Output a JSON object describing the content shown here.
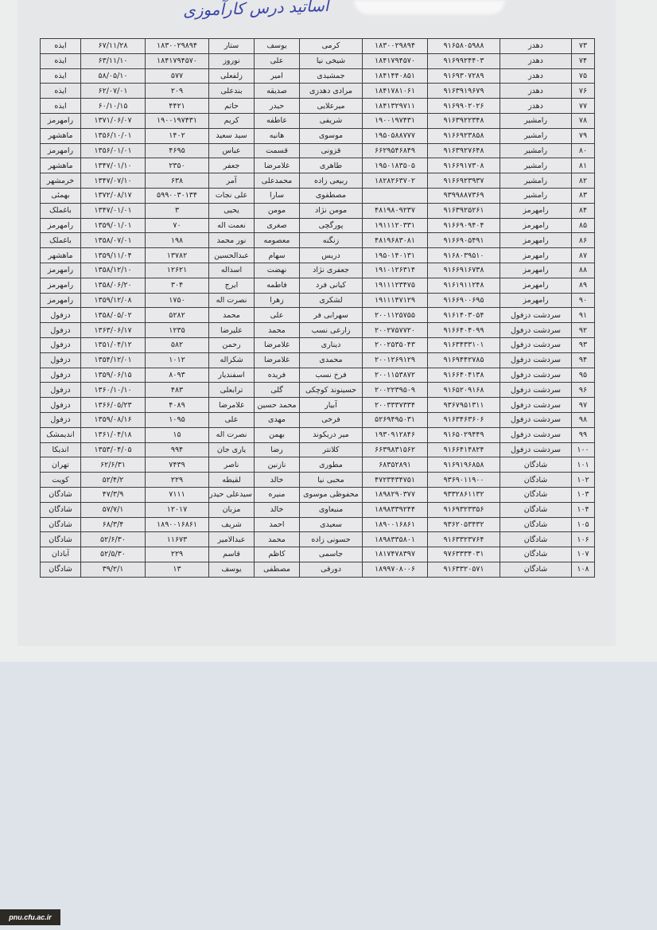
{
  "title": "اساتید درس کارآموزی",
  "watermark": "pnu.cfu.ac.ir",
  "rows": [
    [
      "۷۳",
      "دهدز",
      "۹۱۶۵۸۰۵۹۸۸",
      "۱۸۳۰۰۲۹۸۹۴",
      "کرمی",
      "یوسف",
      "ستار",
      "۱۸۳۰۰۲۹۸۹۴",
      "۶۷/۱۱/۲۸",
      "ایذه"
    ],
    [
      "۷۴",
      "دهدز",
      "۹۱۶۹۹۲۴۴۰۳",
      "۱۸۴۱۷۹۴۵۷۰",
      "شیخی نیا",
      "علی",
      "نوروز",
      "۱۸۴۱۷۹۴۵۷۰",
      "۶۳/۱۱/۱۰",
      "ایذه"
    ],
    [
      "۷۵",
      "دهدز",
      "۹۱۶۹۳۰۷۲۸۹",
      "۱۸۴۱۴۴۰۸۵۱",
      "جمشیدی",
      "امیر",
      "زلفعلی",
      "۵۷۷",
      "۵۸/۰۵/۱۰",
      "ایذه"
    ],
    [
      "۷۶",
      "دهدز",
      "۹۱۶۳۹۱۹۶۷۹",
      "۱۸۴۱۷۸۱۰۶۱",
      "مرادی دهدزی",
      "صدیقه",
      "بندعلی",
      "۲۰۹",
      "۶۲/۰۷/۰۱",
      "ایذه"
    ],
    [
      "۷۷",
      "دهدز",
      "۹۱۶۹۹۰۲۰۲۶",
      "۱۸۴۱۳۲۹۷۱۱",
      "میرعلایی",
      "حیدر",
      "حاتم",
      "۴۴۲۱",
      "۶۰/۱۰/۱۵",
      "ایذه"
    ],
    [
      "۷۸",
      "رامشیر",
      "۹۱۶۳۹۲۲۳۴۸",
      "۱۹۰۰۱۹۷۴۳۱",
      "شریفی",
      "عاطفه",
      "کریم",
      "۱۹۰۰۱۹۷۴۳۱",
      "۱۳۷۱/۰۶/۰۷",
      "رامهرمز"
    ],
    [
      "۷۹",
      "رامشیر",
      "۹۱۶۶۹۲۳۸۵۸",
      "۱۹۵۰۵۸۸۷۷۷",
      "موسوی",
      "هانیه",
      "سید سعید",
      "۱۴۰۲",
      "۱۳۵۶/۱۰/۰۱",
      "ماهشهر"
    ],
    [
      "۸۰",
      "رامشیر",
      "۹۱۶۳۹۲۷۶۴۸",
      "۶۶۲۹۵۴۶۸۴۹",
      "قزونی",
      "قسمت",
      "عباس",
      "۴۶۹۵",
      "۱۳۵۶/۰۱/۰۱",
      "رامهرمز"
    ],
    [
      "۸۱",
      "رامشیر",
      "۹۱۶۶۹۱۷۳۰۸",
      "۱۹۵۰۱۸۳۵۰۵",
      "طاهری",
      "غلامرضا",
      "جعفر",
      "۲۳۵۰",
      "۱۳۴۷/۰۱/۱۰",
      "ماهشهر"
    ],
    [
      "۸۲",
      "رامشیر",
      "۹۱۶۶۹۲۳۹۳۷",
      "۱۸۲۸۲۶۳۷۰۲",
      "ربیعی زاده",
      "محمدعلی",
      "آمر",
      "۶۳۸",
      "۱۳۴۷/۰۷/۱۰",
      "خرمشهر"
    ],
    [
      "۸۳",
      "رامشیر",
      "۹۳۹۹۸۸۷۳۶۹",
      "",
      "مصطفوی",
      "سارا",
      "علی نجات",
      "۵۹۹۰۰۳۰۱۳۴",
      "۱۳۷۲/۰۸/۱۷",
      "بهمئی"
    ],
    [
      "۸۴",
      "رامهرمز",
      "۹۱۶۳۹۲۵۲۶۱",
      "۴۸۱۹۸۰۹۲۳۷",
      "مومن نژاد",
      "مومن",
      "یحیی",
      "۳",
      "۱۳۴۷/۰۱/۰۱",
      "باغملک"
    ],
    [
      "۸۵",
      "رامهرمز",
      "۹۱۶۶۹۰۹۴۰۴",
      "۱۹۱۱۱۲۰۳۳۱",
      "پورگچی",
      "صغری",
      "نعمت اله",
      "۷۰",
      "۱۳۵۹/۰۱/۰۱",
      "رامهرمز"
    ],
    [
      "۸۶",
      "رامهرمز",
      "۹۱۶۶۹۰۵۴۹۱",
      "۴۸۱۹۶۸۳۰۸۱",
      "زنگنه",
      "معصومه",
      "نور محمد",
      "۱۹۸",
      "۱۳۵۸/۰۷/۰۱",
      "باغملک"
    ],
    [
      "۸۷",
      "رامهرمز",
      "۹۱۶۸۰۳۹۵۱۰",
      "۱۹۵۰۱۴۰۱۳۱",
      "دریس",
      "سهام",
      "عبدالحسین",
      "۱۳۷۸۲",
      "۱۳۵۹/۱۱/۰۴",
      "ماهشهر"
    ],
    [
      "۸۸",
      "رامهرمز",
      "۹۱۶۶۹۱۶۷۳۸",
      "۱۹۱۰۱۲۶۳۱۴",
      "جعفری نژاد",
      "نهضت",
      "اسداله",
      "۱۲۶۲۱",
      "۱۳۵۸/۱۲/۱۰",
      "رامهرمز"
    ],
    [
      "۸۹",
      "رامهرمز",
      "۹۱۶۱۹۱۱۲۴۸",
      "۱۹۱۱۱۲۳۴۷۵",
      "کیانی فرد",
      "فاطمه",
      "ایرج",
      "۳۰۴",
      "۱۳۵۸/۰۶/۲۰",
      "رامهرمز"
    ],
    [
      "۹۰",
      "رامهرمز",
      "۹۱۶۶۹۰۰۶۹۵",
      "۱۹۱۱۱۴۷۱۲۹",
      "لشکری",
      "زهرا",
      "نصرت اله",
      "۱۷۵۰",
      "۱۳۵۹/۱۲/۰۸",
      "رامهرمز"
    ],
    [
      "۹۱",
      "سردشت دزفول",
      "۹۱۶۱۴۰۳۰۵۴",
      "۲۰۰۱۱۲۵۷۵۵",
      "سهرابی فر",
      "علی",
      "محمد",
      "۵۲۸۲",
      "۱۳۵۸/۰۵/۰۲",
      "دزفول"
    ],
    [
      "۹۲",
      "سردشت دزفول",
      "۹۱۶۶۴۰۴۰۹۹",
      "۲۰۰۲۷۵۷۷۲۰",
      "زارعی نسب",
      "محمد",
      "علیرضا",
      "۱۲۳۵",
      "۱۳۶۳/۰۶/۱۷",
      "دزفول"
    ],
    [
      "۹۳",
      "سردشت دزفول",
      "۹۱۶۳۴۳۳۱۰۱",
      "۲۰۰۲۵۳۵۰۴۳",
      "دیناری",
      "غلامرضا",
      "رحمن",
      "۵۸۲",
      "۱۳۵۱/۰۴/۱۲",
      "دزفول"
    ],
    [
      "۹۴",
      "سردشت دزفول",
      "۹۱۶۹۴۴۲۷۸۵",
      "۲۰۰۱۲۶۹۱۲۹",
      "محمدی",
      "غلامرضا",
      "شکراله",
      "۱۰۱۲",
      "۱۳۵۴/۱۲/۰۱",
      "دزفول"
    ],
    [
      "۹۵",
      "سردشت دزفول",
      "۹۱۶۶۴۰۴۱۳۸",
      "۲۰۰۱۱۵۳۸۷۲",
      "فرخ نسب",
      "فریده",
      "اسفندیار",
      "۸۰۹۳",
      "۱۳۵۹/۰۶/۱۵",
      "دزفول"
    ],
    [
      "۹۶",
      "سردشت دزفول",
      "۹۱۶۵۲۰۹۱۶۸",
      "۲۰۰۲۲۳۹۵۰۹",
      "حسینوند کوچکی",
      "گلی",
      "ترابعلی",
      "۴۸۳",
      "۱۳۶۰/۱۰/۱۰",
      "دزفول"
    ],
    [
      "۹۷",
      "سردشت دزفول",
      "۹۳۶۷۹۵۱۳۱۱",
      "۲۰۰۳۳۳۷۳۳۴",
      "آبیار",
      "محمد حسین",
      "غلامرضا",
      "۴۰۸۹",
      "۱۳۶۶/۰۵/۲۳",
      "دزفول"
    ],
    [
      "۹۸",
      "سردشت دزفول",
      "۹۱۶۳۴۶۳۶۰۶",
      "۵۲۶۹۴۹۵۰۳۱",
      "فرخی",
      "مهدی",
      "علی",
      "۱۰۹۵",
      "۱۳۵۹/۰۸/۱۶",
      "دزفول"
    ],
    [
      "۹۹",
      "سردشت دزفول",
      "۹۱۶۵۰۲۹۴۴۹",
      "۱۹۳۰۹۱۲۸۴۶",
      "میر دریکوند",
      "بهمن",
      "نصرت اله",
      "۱۵",
      "۱۳۶۱/۰۴/۱۸",
      "اندیمشک"
    ],
    [
      "۱۰۰",
      "سردشت دزفول",
      "۹۱۶۶۴۱۴۸۲۴",
      "۶۶۳۹۸۳۱۵۶۲",
      "کلانتر",
      "رضا",
      "یاری جان",
      "۹۹۴",
      "۱۳۵۳/۰۴/۰۵",
      "اندیکا"
    ],
    [
      "۱۰۱",
      "شادگان",
      "۹۱۶۹۱۹۶۸۵۸",
      "۶۸۳۵۲۸۹۱",
      "مطوری",
      "نازنین",
      "ناصر",
      "۷۴۳۹",
      "۶۲/۶/۳۱",
      "تهران"
    ],
    [
      "۱۰۲",
      "شادگان",
      "۹۳۶۹۰۱۱۹۰۰",
      "۴۷۲۳۴۳۴۷۵۱",
      "محبی نیا",
      "خالد",
      "لقیطه",
      "۲۲۹",
      "۵۲/۴/۲",
      "کویت"
    ],
    [
      "۱۰۳",
      "شادگان",
      "۹۳۳۲۸۶۱۱۳۲",
      "۱۸۹۸۲۹۰۳۷۷",
      "محفوظی موسوی",
      "منیره",
      "سیدعلی حیدر",
      "۷۱۱۱",
      "۴۷/۳/۹",
      "شادگان"
    ],
    [
      "۱۰۴",
      "شادگان",
      "۹۱۶۹۳۲۳۳۵۶",
      "۱۸۹۸۳۳۹۲۴۴",
      "منبعاوی",
      "خالد",
      "مزبان",
      "۱۲۰۱۷",
      "۵۷/۷/۱",
      "شادگان"
    ],
    [
      "۱۰۵",
      "شادگان",
      "۹۳۶۲۰۵۳۴۳۲",
      "۱۸۹۰۰۱۶۸۶۱",
      "سعیدی",
      "احمد",
      "شریف",
      "۱۸۹۰۰۱۶۸۶۱",
      "۶۸/۳/۴",
      "شادگان"
    ],
    [
      "۱۰۶",
      "شادگان",
      "۹۱۶۳۳۲۳۷۶۴",
      "۱۸۹۸۳۳۵۸۰۱",
      "حسونی زاده",
      "محمد",
      "عبدالامیر",
      "۱۱۶۷۳",
      "۵۲/۶/۳۰",
      "شادگان"
    ],
    [
      "۱۰۷",
      "شادگان",
      "۹۷۶۳۳۳۴۰۳۱",
      "۱۸۱۷۴۷۸۳۹۷",
      "جاسمی",
      "کاظم",
      "قاسم",
      "۲۲۹",
      "۵۲/۵/۳۰",
      "آبادان"
    ],
    [
      "۱۰۸",
      "شادگان",
      "۹۱۶۳۳۲۰۵۷۱",
      "۱۸۹۹۷۰۸۰۰۶",
      "دورقی",
      "مصطفی",
      "یوسف",
      "۱۳",
      "۳۹/۲/۱",
      "شادگان"
    ]
  ]
}
